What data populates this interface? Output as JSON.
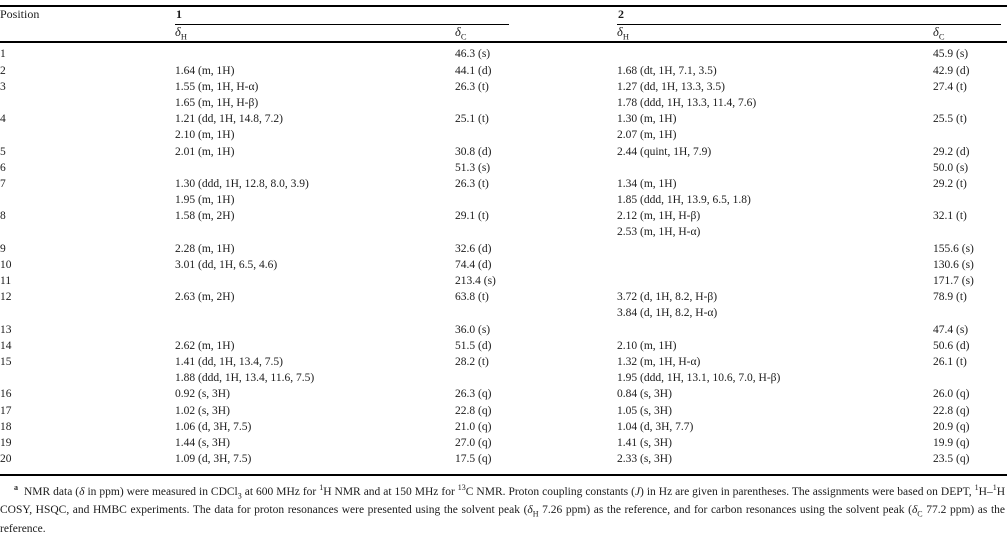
{
  "table": {
    "header": {
      "position_label": "Position",
      "groups": [
        {
          "label": "1"
        },
        {
          "label": "2"
        }
      ],
      "delta_symbol": "δ",
      "sub_h": "H",
      "sub_c": "C"
    },
    "rows": [
      {
        "pos": "1",
        "h1": [],
        "c1": "46.3 (s)",
        "h2": [],
        "c2": "45.9 (s)"
      },
      {
        "pos": "2",
        "h1": [
          "1.64 (m, 1H)"
        ],
        "c1": "44.1 (d)",
        "h2": [
          "1.68 (dt, 1H, 7.1, 3.5)"
        ],
        "c2": "42.9 (d)"
      },
      {
        "pos": "3",
        "h1": [
          "1.55 (m, 1H, H-α)",
          "1.65 (m, 1H, H-β)"
        ],
        "c1": "26.3 (t)",
        "h2": [
          "1.27 (dd, 1H, 13.3, 3.5)",
          "1.78 (ddd, 1H, 13.3, 11.4, 7.6)"
        ],
        "c2": "27.4 (t)"
      },
      {
        "pos": "4",
        "h1": [
          "1.21 (dd, 1H, 14.8, 7.2)",
          "2.10 (m, 1H)"
        ],
        "c1": "25.1 (t)",
        "h2": [
          "1.30 (m, 1H)",
          "2.07 (m, 1H)"
        ],
        "c2": "25.5 (t)"
      },
      {
        "pos": "5",
        "h1": [
          "2.01 (m, 1H)"
        ],
        "c1": "30.8 (d)",
        "h2": [
          "2.44 (quint, 1H, 7.9)"
        ],
        "c2": "29.2 (d)"
      },
      {
        "pos": "6",
        "h1": [],
        "c1": "51.3 (s)",
        "h2": [],
        "c2": "50.0 (s)"
      },
      {
        "pos": "7",
        "h1": [
          "1.30 (ddd, 1H, 12.8, 8.0, 3.9)",
          "1.95 (m, 1H)"
        ],
        "c1": "26.3 (t)",
        "h2": [
          "1.34 (m, 1H)",
          "1.85 (ddd, 1H, 13.9, 6.5, 1.8)"
        ],
        "c2": "29.2 (t)"
      },
      {
        "pos": "8",
        "h1": [
          "1.58 (m, 2H)"
        ],
        "c1": "29.1 (t)",
        "h2": [
          "2.12 (m, 1H, H-β)",
          "2.53 (m, 1H, H-α)"
        ],
        "c2": "32.1 (t)"
      },
      {
        "pos": "9",
        "h1": [
          "2.28 (m, 1H)"
        ],
        "c1": "32.6 (d)",
        "h2": [],
        "c2": "155.6 (s)"
      },
      {
        "pos": "10",
        "h1": [
          "3.01 (dd, 1H, 6.5, 4.6)"
        ],
        "c1": "74.4 (d)",
        "h2": [],
        "c2": "130.6 (s)"
      },
      {
        "pos": "11",
        "h1": [],
        "c1": "213.4 (s)",
        "h2": [],
        "c2": "171.7 (s)"
      },
      {
        "pos": "12",
        "h1": [
          "2.63 (m, 2H)"
        ],
        "c1": "63.8 (t)",
        "h2": [
          "3.72 (d, 1H, 8.2, H-β)",
          "3.84 (d, 1H, 8.2, H-α)"
        ],
        "c2": "78.9 (t)"
      },
      {
        "pos": "13",
        "h1": [],
        "c1": "36.0 (s)",
        "h2": [],
        "c2": "47.4 (s)"
      },
      {
        "pos": "14",
        "h1": [
          "2.62 (m, 1H)"
        ],
        "c1": "51.5 (d)",
        "h2": [
          "2.10 (m, 1H)"
        ],
        "c2": "50.6 (d)"
      },
      {
        "pos": "15",
        "h1": [
          "1.41 (dd, 1H, 13.4, 7.5)",
          "1.88 (ddd, 1H, 13.4, 11.6, 7.5)"
        ],
        "c1": "28.2 (t)",
        "h2": [
          "1.32 (m, 1H, H-α)",
          "1.95 (ddd, 1H, 13.1, 10.6, 7.0, H-β)"
        ],
        "c2": "26.1 (t)"
      },
      {
        "pos": "16",
        "h1": [
          "0.92 (s, 3H)"
        ],
        "c1": "26.3 (q)",
        "h2": [
          "0.84 (s, 3H)"
        ],
        "c2": "26.0 (q)"
      },
      {
        "pos": "17",
        "h1": [
          "1.02 (s, 3H)"
        ],
        "c1": "22.8 (q)",
        "h2": [
          "1.05 (s, 3H)"
        ],
        "c2": "22.8 (q)"
      },
      {
        "pos": "18",
        "h1": [
          "1.06 (d, 3H, 7.5)"
        ],
        "c1": "21.0 (q)",
        "h2": [
          "1.04 (d, 3H, 7.7)"
        ],
        "c2": "20.9 (q)"
      },
      {
        "pos": "19",
        "h1": [
          "1.44 (s, 3H)"
        ],
        "c1": "27.0 (q)",
        "h2": [
          "1.41 (s, 3H)"
        ],
        "c2": "19.9 (q)"
      },
      {
        "pos": "20",
        "h1": [
          "1.09 (d, 3H, 7.5)"
        ],
        "c1": "17.5 (q)",
        "h2": [
          "2.33 (s, 3H)"
        ],
        "c2": "23.5 (q)"
      }
    ]
  },
  "footnote": {
    "marker": "a",
    "segments": [
      {
        "t": "NMR data (",
        "f": ""
      },
      {
        "t": "δ",
        "f": "i"
      },
      {
        "t": " in ppm) were measured in CDCl",
        "f": ""
      },
      {
        "t": "3",
        "f": "sub"
      },
      {
        "t": " at 600 MHz for ",
        "f": ""
      },
      {
        "t": "1",
        "f": "sup"
      },
      {
        "t": "H NMR and at 150 MHz for ",
        "f": ""
      },
      {
        "t": "13",
        "f": "sup"
      },
      {
        "t": "C NMR. Proton coupling constants (",
        "f": ""
      },
      {
        "t": "J",
        "f": "i"
      },
      {
        "t": ") in Hz are given in parentheses. The assignments were based on DEPT, ",
        "f": ""
      },
      {
        "t": "1",
        "f": "sup"
      },
      {
        "t": "H–",
        "f": ""
      },
      {
        "t": "1",
        "f": "sup"
      },
      {
        "t": "H COSY, HSQC, and HMBC experiments. The data for proton resonances were presented using the solvent peak (",
        "f": ""
      },
      {
        "t": "δ",
        "f": "i"
      },
      {
        "t": "H",
        "f": "sub"
      },
      {
        "t": " 7.26 ppm) as the reference, and for carbon resonances using the solvent peak (",
        "f": ""
      },
      {
        "t": "δ",
        "f": "i"
      },
      {
        "t": "C",
        "f": "sub"
      },
      {
        "t": " 77.2 ppm) as the reference.",
        "f": ""
      }
    ]
  }
}
